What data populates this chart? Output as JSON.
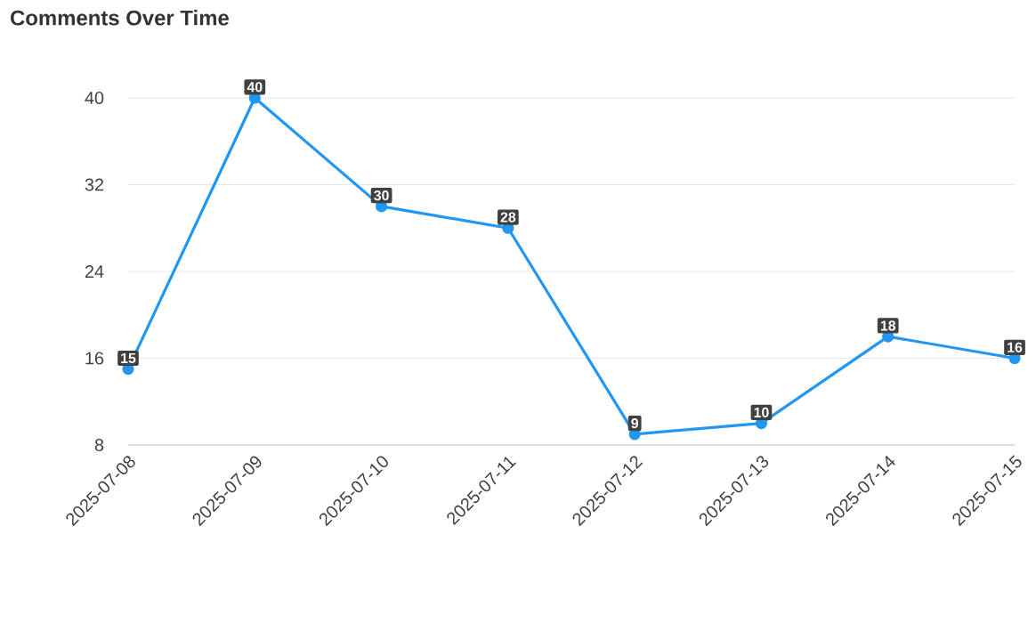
{
  "chart_data": {
    "type": "line",
    "title": "Comments Over Time",
    "categories": [
      "2025-07-08",
      "2025-07-09",
      "2025-07-10",
      "2025-07-11",
      "2025-07-12",
      "2025-07-13",
      "2025-07-14",
      "2025-07-15"
    ],
    "values": [
      15,
      40,
      30,
      28,
      9,
      10,
      18,
      16
    ],
    "color": "#2196f3",
    "ylim": [
      8,
      40
    ],
    "yticks": [
      8,
      16,
      24,
      32,
      40
    ],
    "grid": "y",
    "marker": "circle",
    "data_labels": true
  }
}
